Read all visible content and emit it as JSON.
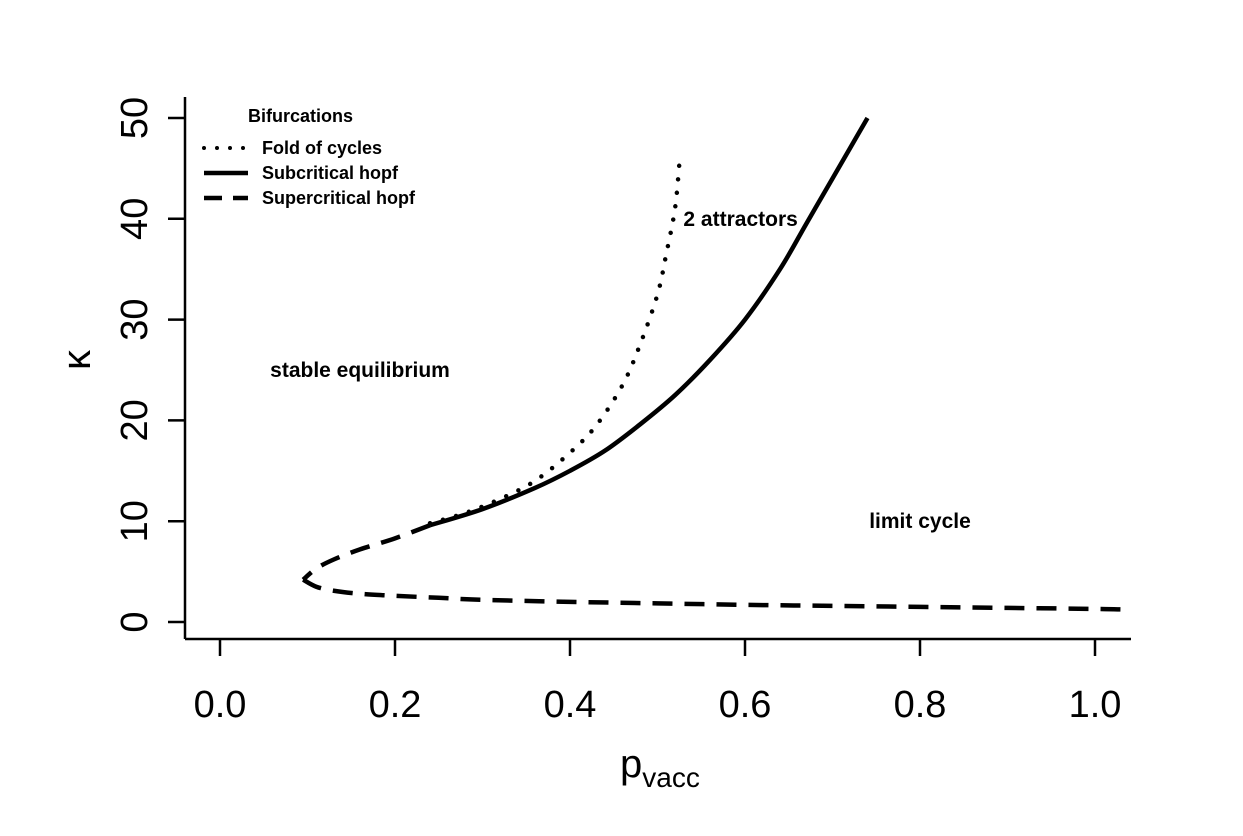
{
  "chart_data": {
    "type": "line",
    "xlabel": "p",
    "xlabel_subscript": "vacc",
    "ylabel": "κ",
    "xlim": [
      -0.04,
      1.04
    ],
    "ylim": [
      -1.5,
      52
    ],
    "xticks": [
      0.0,
      0.2,
      0.4,
      0.6,
      0.8,
      1.0
    ],
    "xtick_labels": [
      "0.0",
      "0.2",
      "0.4",
      "0.6",
      "0.8",
      "1.0"
    ],
    "yticks": [
      0,
      10,
      20,
      30,
      40,
      50
    ],
    "ytick_labels": [
      "0",
      "10",
      "20",
      "30",
      "40",
      "50"
    ],
    "grid": false,
    "legend": {
      "title": "Bifurcations",
      "position": "top-left",
      "entries": [
        {
          "label": "Fold of cycles",
          "style": "dotted"
        },
        {
          "label": "Subcritical hopf",
          "style": "solid"
        },
        {
          "label": "Supercritical hopf",
          "style": "dashed"
        }
      ]
    },
    "series": [
      {
        "name": "Fold of cycles",
        "style": "dotted",
        "x": [
          0.24,
          0.28,
          0.32,
          0.36,
          0.4,
          0.43,
          0.46,
          0.48,
          0.5,
          0.51,
          0.52,
          0.525
        ],
        "y": [
          9.8,
          10.8,
          12.2,
          14.0,
          16.8,
          19.5,
          23.5,
          27.5,
          32.5,
          36.5,
          41.0,
          45.5
        ]
      },
      {
        "name": "Subcritical hopf",
        "style": "solid",
        "x": [
          0.24,
          0.3,
          0.36,
          0.4,
          0.44,
          0.48,
          0.52,
          0.56,
          0.6,
          0.64,
          0.67,
          0.7,
          0.72,
          0.74
        ],
        "y": [
          9.6,
          11.2,
          13.3,
          15.0,
          17.0,
          19.6,
          22.5,
          26.0,
          30.0,
          35.0,
          39.5,
          44.0,
          47.0,
          50.0
        ]
      },
      {
        "name": "Supercritical hopf (upper branch)",
        "style": "dashed",
        "x": [
          0.24,
          0.2,
          0.16,
          0.13,
          0.11,
          0.095
        ],
        "y": [
          9.6,
          8.3,
          7.2,
          6.2,
          5.3,
          4.2
        ]
      },
      {
        "name": "Supercritical hopf (lower branch)",
        "style": "dashed",
        "x": [
          0.095,
          0.11,
          0.13,
          0.16,
          0.2,
          0.25,
          0.3,
          0.4,
          0.5,
          0.6,
          0.7,
          0.8,
          0.9,
          1.0,
          1.03
        ],
        "y": [
          4.2,
          3.5,
          3.1,
          2.8,
          2.6,
          2.4,
          2.2,
          2.0,
          1.85,
          1.7,
          1.6,
          1.5,
          1.4,
          1.3,
          1.25
        ]
      }
    ],
    "annotations": [
      {
        "text": "stable equilibrium",
        "x": 0.16,
        "y": 25
      },
      {
        "text": "2 attractors",
        "x": 0.595,
        "y": 40
      },
      {
        "text": "limit cycle",
        "x": 0.8,
        "y": 10
      }
    ]
  }
}
